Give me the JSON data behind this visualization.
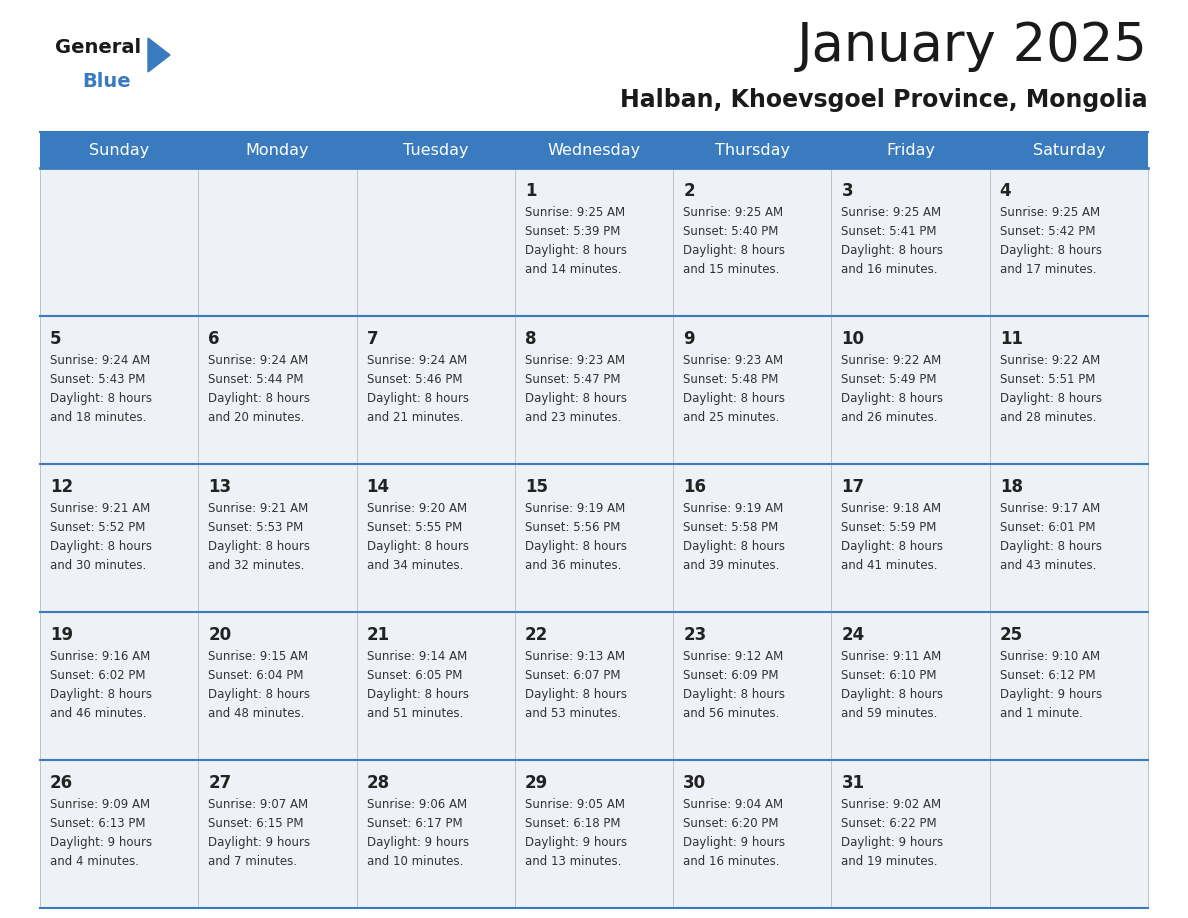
{
  "title": "January 2025",
  "subtitle": "Halban, Khoevsgoel Province, Mongolia",
  "header_bg_color": "#3a7bbf",
  "header_text_color": "#ffffff",
  "cell_bg_odd": "#eef2f7",
  "cell_bg_even": "#ffffff",
  "day_number_color": "#222222",
  "cell_text_color": "#333333",
  "grid_line_color": "#3a7bbf",
  "separator_line_color": "#3a7bbf",
  "days_of_week": [
    "Sunday",
    "Monday",
    "Tuesday",
    "Wednesday",
    "Thursday",
    "Friday",
    "Saturday"
  ],
  "calendar_data": [
    [
      {
        "day": "",
        "sunrise": "",
        "sunset": "",
        "daylight_line1": "",
        "daylight_line2": ""
      },
      {
        "day": "",
        "sunrise": "",
        "sunset": "",
        "daylight_line1": "",
        "daylight_line2": ""
      },
      {
        "day": "",
        "sunrise": "",
        "sunset": "",
        "daylight_line1": "",
        "daylight_line2": ""
      },
      {
        "day": "1",
        "sunrise": "Sunrise: 9:25 AM",
        "sunset": "Sunset: 5:39 PM",
        "daylight_line1": "Daylight: 8 hours",
        "daylight_line2": "and 14 minutes."
      },
      {
        "day": "2",
        "sunrise": "Sunrise: 9:25 AM",
        "sunset": "Sunset: 5:40 PM",
        "daylight_line1": "Daylight: 8 hours",
        "daylight_line2": "and 15 minutes."
      },
      {
        "day": "3",
        "sunrise": "Sunrise: 9:25 AM",
        "sunset": "Sunset: 5:41 PM",
        "daylight_line1": "Daylight: 8 hours",
        "daylight_line2": "and 16 minutes."
      },
      {
        "day": "4",
        "sunrise": "Sunrise: 9:25 AM",
        "sunset": "Sunset: 5:42 PM",
        "daylight_line1": "Daylight: 8 hours",
        "daylight_line2": "and 17 minutes."
      }
    ],
    [
      {
        "day": "5",
        "sunrise": "Sunrise: 9:24 AM",
        "sunset": "Sunset: 5:43 PM",
        "daylight_line1": "Daylight: 8 hours",
        "daylight_line2": "and 18 minutes."
      },
      {
        "day": "6",
        "sunrise": "Sunrise: 9:24 AM",
        "sunset": "Sunset: 5:44 PM",
        "daylight_line1": "Daylight: 8 hours",
        "daylight_line2": "and 20 minutes."
      },
      {
        "day": "7",
        "sunrise": "Sunrise: 9:24 AM",
        "sunset": "Sunset: 5:46 PM",
        "daylight_line1": "Daylight: 8 hours",
        "daylight_line2": "and 21 minutes."
      },
      {
        "day": "8",
        "sunrise": "Sunrise: 9:23 AM",
        "sunset": "Sunset: 5:47 PM",
        "daylight_line1": "Daylight: 8 hours",
        "daylight_line2": "and 23 minutes."
      },
      {
        "day": "9",
        "sunrise": "Sunrise: 9:23 AM",
        "sunset": "Sunset: 5:48 PM",
        "daylight_line1": "Daylight: 8 hours",
        "daylight_line2": "and 25 minutes."
      },
      {
        "day": "10",
        "sunrise": "Sunrise: 9:22 AM",
        "sunset": "Sunset: 5:49 PM",
        "daylight_line1": "Daylight: 8 hours",
        "daylight_line2": "and 26 minutes."
      },
      {
        "day": "11",
        "sunrise": "Sunrise: 9:22 AM",
        "sunset": "Sunset: 5:51 PM",
        "daylight_line1": "Daylight: 8 hours",
        "daylight_line2": "and 28 minutes."
      }
    ],
    [
      {
        "day": "12",
        "sunrise": "Sunrise: 9:21 AM",
        "sunset": "Sunset: 5:52 PM",
        "daylight_line1": "Daylight: 8 hours",
        "daylight_line2": "and 30 minutes."
      },
      {
        "day": "13",
        "sunrise": "Sunrise: 9:21 AM",
        "sunset": "Sunset: 5:53 PM",
        "daylight_line1": "Daylight: 8 hours",
        "daylight_line2": "and 32 minutes."
      },
      {
        "day": "14",
        "sunrise": "Sunrise: 9:20 AM",
        "sunset": "Sunset: 5:55 PM",
        "daylight_line1": "Daylight: 8 hours",
        "daylight_line2": "and 34 minutes."
      },
      {
        "day": "15",
        "sunrise": "Sunrise: 9:19 AM",
        "sunset": "Sunset: 5:56 PM",
        "daylight_line1": "Daylight: 8 hours",
        "daylight_line2": "and 36 minutes."
      },
      {
        "day": "16",
        "sunrise": "Sunrise: 9:19 AM",
        "sunset": "Sunset: 5:58 PM",
        "daylight_line1": "Daylight: 8 hours",
        "daylight_line2": "and 39 minutes."
      },
      {
        "day": "17",
        "sunrise": "Sunrise: 9:18 AM",
        "sunset": "Sunset: 5:59 PM",
        "daylight_line1": "Daylight: 8 hours",
        "daylight_line2": "and 41 minutes."
      },
      {
        "day": "18",
        "sunrise": "Sunrise: 9:17 AM",
        "sunset": "Sunset: 6:01 PM",
        "daylight_line1": "Daylight: 8 hours",
        "daylight_line2": "and 43 minutes."
      }
    ],
    [
      {
        "day": "19",
        "sunrise": "Sunrise: 9:16 AM",
        "sunset": "Sunset: 6:02 PM",
        "daylight_line1": "Daylight: 8 hours",
        "daylight_line2": "and 46 minutes."
      },
      {
        "day": "20",
        "sunrise": "Sunrise: 9:15 AM",
        "sunset": "Sunset: 6:04 PM",
        "daylight_line1": "Daylight: 8 hours",
        "daylight_line2": "and 48 minutes."
      },
      {
        "day": "21",
        "sunrise": "Sunrise: 9:14 AM",
        "sunset": "Sunset: 6:05 PM",
        "daylight_line1": "Daylight: 8 hours",
        "daylight_line2": "and 51 minutes."
      },
      {
        "day": "22",
        "sunrise": "Sunrise: 9:13 AM",
        "sunset": "Sunset: 6:07 PM",
        "daylight_line1": "Daylight: 8 hours",
        "daylight_line2": "and 53 minutes."
      },
      {
        "day": "23",
        "sunrise": "Sunrise: 9:12 AM",
        "sunset": "Sunset: 6:09 PM",
        "daylight_line1": "Daylight: 8 hours",
        "daylight_line2": "and 56 minutes."
      },
      {
        "day": "24",
        "sunrise": "Sunrise: 9:11 AM",
        "sunset": "Sunset: 6:10 PM",
        "daylight_line1": "Daylight: 8 hours",
        "daylight_line2": "and 59 minutes."
      },
      {
        "day": "25",
        "sunrise": "Sunrise: 9:10 AM",
        "sunset": "Sunset: 6:12 PM",
        "daylight_line1": "Daylight: 9 hours",
        "daylight_line2": "and 1 minute."
      }
    ],
    [
      {
        "day": "26",
        "sunrise": "Sunrise: 9:09 AM",
        "sunset": "Sunset: 6:13 PM",
        "daylight_line1": "Daylight: 9 hours",
        "daylight_line2": "and 4 minutes."
      },
      {
        "day": "27",
        "sunrise": "Sunrise: 9:07 AM",
        "sunset": "Sunset: 6:15 PM",
        "daylight_line1": "Daylight: 9 hours",
        "daylight_line2": "and 7 minutes."
      },
      {
        "day": "28",
        "sunrise": "Sunrise: 9:06 AM",
        "sunset": "Sunset: 6:17 PM",
        "daylight_line1": "Daylight: 9 hours",
        "daylight_line2": "and 10 minutes."
      },
      {
        "day": "29",
        "sunrise": "Sunrise: 9:05 AM",
        "sunset": "Sunset: 6:18 PM",
        "daylight_line1": "Daylight: 9 hours",
        "daylight_line2": "and 13 minutes."
      },
      {
        "day": "30",
        "sunrise": "Sunrise: 9:04 AM",
        "sunset": "Sunset: 6:20 PM",
        "daylight_line1": "Daylight: 9 hours",
        "daylight_line2": "and 16 minutes."
      },
      {
        "day": "31",
        "sunrise": "Sunrise: 9:02 AM",
        "sunset": "Sunset: 6:22 PM",
        "daylight_line1": "Daylight: 9 hours",
        "daylight_line2": "and 19 minutes."
      },
      {
        "day": "",
        "sunrise": "",
        "sunset": "",
        "daylight_line1": "",
        "daylight_line2": ""
      }
    ]
  ]
}
